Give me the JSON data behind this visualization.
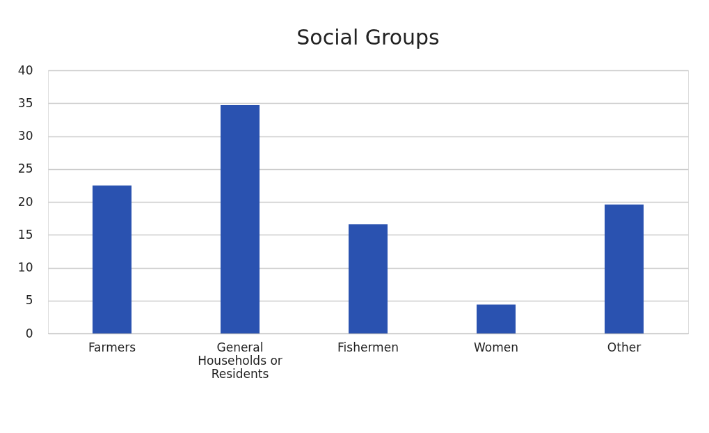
{
  "chart_data": {
    "type": "bar",
    "title": "Social Groups",
    "categories": [
      "Farmers",
      "General Households or Residents",
      "Fishermen",
      "Women",
      "Other"
    ],
    "values": [
      22.5,
      34.7,
      16.6,
      4.4,
      19.6
    ],
    "color": "#2a52b0",
    "ylim": [
      0,
      40
    ],
    "yticks": [
      0,
      5,
      10,
      15,
      20,
      25,
      30,
      35,
      40
    ],
    "grid": "y"
  }
}
